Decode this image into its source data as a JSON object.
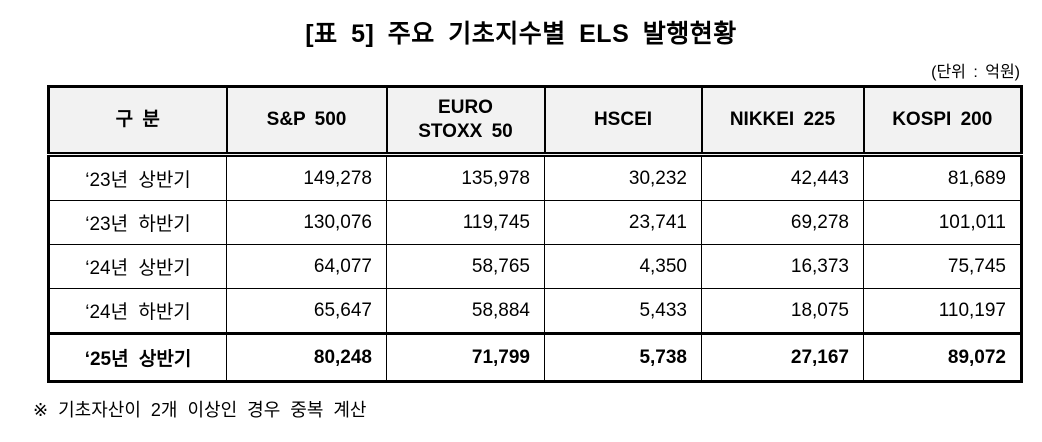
{
  "page": {
    "title": "[표 5] 주요 기초지수별 ELS 발행현황",
    "unit_note": "(단위 : 억원)",
    "footnote": "※ 기초자산이 2개 이상인 경우 중복 계산"
  },
  "table": {
    "columns": [
      "구 분",
      "S&P 500",
      "EURO\nSTOXX 50",
      "HSCEI",
      "NIKKEI 225",
      "KOSPI 200"
    ],
    "rows": [
      {
        "label": "‘23년 상반기",
        "values": [
          "149,278",
          "135,978",
          "30,232",
          "42,443",
          "81,689"
        ],
        "highlight": false
      },
      {
        "label": "‘23년 하반기",
        "values": [
          "130,076",
          "119,745",
          "23,741",
          "69,278",
          "101,011"
        ],
        "highlight": false
      },
      {
        "label": "‘24년 상반기",
        "values": [
          "64,077",
          "58,765",
          "4,350",
          "16,373",
          "75,745"
        ],
        "highlight": false
      },
      {
        "label": "‘24년 하반기",
        "values": [
          "65,647",
          "58,884",
          "5,433",
          "18,075",
          "110,197"
        ],
        "highlight": false
      },
      {
        "label": "‘25년 상반기",
        "values": [
          "80,248",
          "71,799",
          "5,738",
          "27,167",
          "89,072"
        ],
        "highlight": true
      }
    ]
  },
  "colors": {
    "text": "#000000",
    "border": "#000000",
    "header_background": "#f2f2f2",
    "page_background": "#ffffff"
  }
}
